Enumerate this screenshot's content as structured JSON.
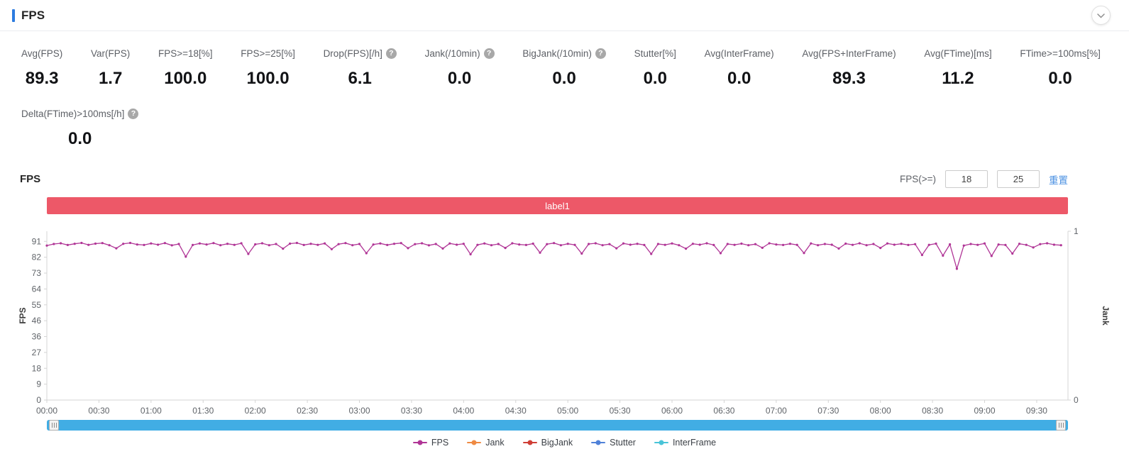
{
  "header": {
    "title": "FPS"
  },
  "icons": {
    "help": "?",
    "collapse": "chevron-down"
  },
  "colors": {
    "accent": "#2d7ce0",
    "band": "#ed5868",
    "scrollbar": "#41ade4",
    "link": "#4a90e2"
  },
  "metrics": [
    {
      "label": "Avg(FPS)",
      "value": "89.3",
      "help": false
    },
    {
      "label": "Var(FPS)",
      "value": "1.7",
      "help": false
    },
    {
      "label": "FPS>=18[%]",
      "value": "100.0",
      "help": false
    },
    {
      "label": "FPS>=25[%]",
      "value": "100.0",
      "help": false
    },
    {
      "label": "Drop(FPS)[/h]",
      "value": "6.1",
      "help": true
    },
    {
      "label": "Jank(/10min)",
      "value": "0.0",
      "help": true
    },
    {
      "label": "BigJank(/10min)",
      "value": "0.0",
      "help": true
    },
    {
      "label": "Stutter[%]",
      "value": "0.0",
      "help": false
    },
    {
      "label": "Avg(InterFrame)",
      "value": "0.0",
      "help": false
    },
    {
      "label": "Avg(FPS+InterFrame)",
      "value": "89.3",
      "help": false
    },
    {
      "label": "Avg(FTime)[ms]",
      "value": "11.2",
      "help": false
    },
    {
      "label": "FTime>=100ms[%]",
      "value": "0.0",
      "help": false
    }
  ],
  "metrics_row2": [
    {
      "label": "Delta(FTime)>100ms[/h]",
      "value": "0.0",
      "help": true
    }
  ],
  "chart_section": {
    "title": "FPS",
    "filter_label": "FPS(>=)",
    "filter_value_1": "18",
    "filter_value_2": "25",
    "reset_label": "重置",
    "band_label": "label1"
  },
  "chart_data": {
    "type": "line",
    "title": "FPS",
    "grid": false,
    "legend_position": "bottom",
    "x_axis": {
      "unit": "mm:ss",
      "tick_interval_s": 30,
      "max_s": 588,
      "tick_labels": [
        "00:00",
        "00:30",
        "01:00",
        "01:30",
        "02:00",
        "02:30",
        "03:00",
        "03:30",
        "04:00",
        "04:30",
        "05:00",
        "05:30",
        "06:00",
        "06:30",
        "07:00",
        "07:30",
        "08:00",
        "08:30",
        "09:00",
        "09:30"
      ]
    },
    "y_axis_left": {
      "name": "FPS",
      "min": 0,
      "max": 91,
      "tick_labels": [
        "0",
        "9",
        "18",
        "27",
        "36",
        "46",
        "55",
        "64",
        "73",
        "82",
        "91"
      ]
    },
    "y_axis_right": {
      "name": "Jank",
      "min": 0,
      "max": 1,
      "tick_labels": [
        "0",
        "1"
      ]
    },
    "series": [
      {
        "name": "FPS",
        "color": "#b03596",
        "x_start_s": 0,
        "x_step_s": 4,
        "values": [
          88.6,
          89.5,
          89.9,
          88.9,
          89.6,
          90.1,
          89.0,
          89.7,
          90.0,
          88.8,
          87.0,
          89.6,
          90.1,
          89.2,
          88.9,
          89.8,
          89.1,
          90.0,
          88.7,
          89.5,
          82.2,
          88.9,
          89.8,
          89.2,
          90.0,
          88.8,
          89.6,
          89.0,
          89.9,
          83.8,
          89.3,
          89.9,
          88.8,
          89.5,
          86.8,
          89.7,
          90.1,
          88.9,
          89.6,
          89.0,
          89.8,
          86.5,
          89.4,
          90.0,
          88.8,
          89.5,
          84.2,
          89.2,
          89.8,
          88.9,
          89.6,
          90.0,
          87.1,
          89.4,
          89.9,
          88.7,
          89.5,
          86.9,
          89.8,
          89.1,
          89.6,
          83.6,
          89.0,
          89.8,
          88.8,
          89.5,
          87.2,
          89.9,
          89.2,
          88.9,
          89.7,
          84.5,
          89.4,
          90.0,
          88.8,
          89.6,
          89.0,
          84.0,
          89.5,
          89.9,
          88.8,
          89.4,
          87.0,
          89.8,
          89.1,
          89.6,
          88.9,
          83.8,
          89.5,
          89.0,
          89.8,
          88.8,
          86.8,
          89.6,
          89.1,
          89.9,
          88.9,
          84.2,
          89.5,
          89.0,
          89.7,
          88.8,
          89.4,
          87.3,
          89.9,
          89.2,
          88.9,
          89.6,
          89.0,
          84.3,
          89.8,
          88.8,
          89.5,
          89.1,
          86.9,
          89.7,
          89.0,
          89.9,
          88.8,
          89.5,
          87.2,
          89.8,
          89.1,
          89.6,
          88.9,
          89.4,
          83.2,
          89.0,
          89.7,
          82.8,
          89.3,
          75.3,
          88.6,
          89.5,
          89.0,
          89.8,
          82.6,
          89.2,
          88.9,
          84.0,
          89.6,
          89.0,
          87.5,
          89.4,
          89.9,
          89.1,
          88.8
        ]
      }
    ],
    "legend": [
      {
        "label": "FPS",
        "color": "#b03596"
      },
      {
        "label": "Jank",
        "color": "#ef8a43"
      },
      {
        "label": "BigJank",
        "color": "#cf3e36"
      },
      {
        "label": "Stutter",
        "color": "#4f81d8"
      },
      {
        "label": "InterFrame",
        "color": "#49c4d8"
      }
    ]
  }
}
